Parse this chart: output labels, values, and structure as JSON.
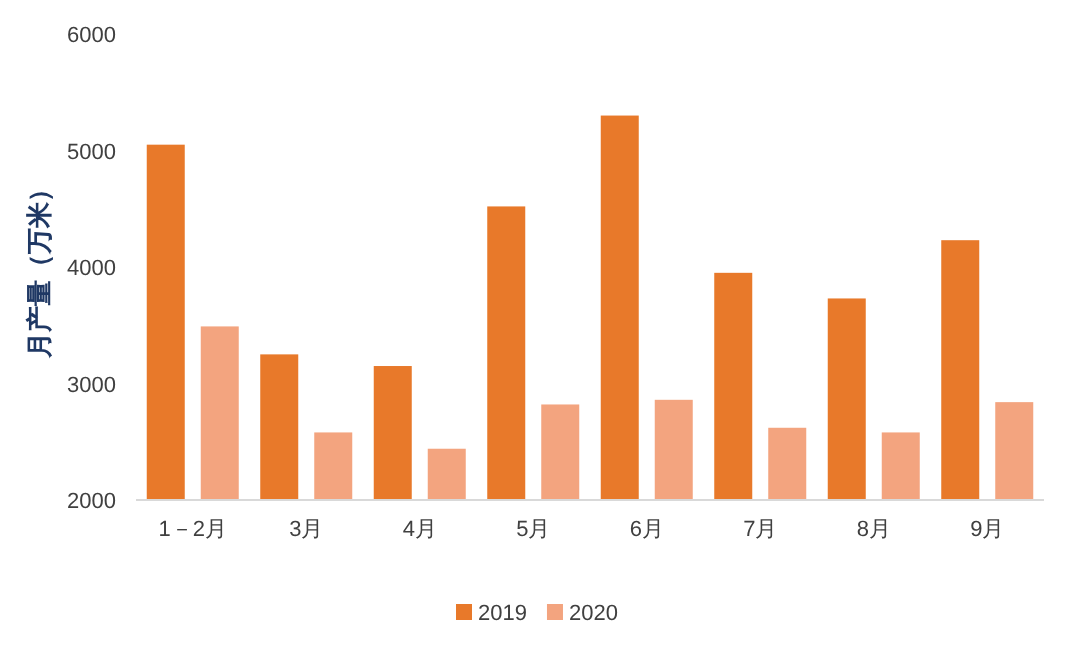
{
  "chart_data": {
    "type": "bar",
    "ylabel": "月产量（万米）",
    "categories": [
      "1－2月",
      "3月",
      "4月",
      "5月",
      "6月",
      "7月",
      "8月",
      "9月"
    ],
    "series": [
      {
        "name": "2019",
        "color": "#e8792a",
        "values": [
          5050,
          3250,
          3150,
          4520,
          5300,
          3950,
          3730,
          4230
        ]
      },
      {
        "name": "2020",
        "color": "#f3a47f",
        "values": [
          3490,
          2580,
          2440,
          2820,
          2860,
          2620,
          2580,
          2840
        ]
      }
    ],
    "ylim": [
      2000,
      6000
    ],
    "yticks": [
      2000,
      3000,
      4000,
      5000,
      6000
    ],
    "legend": "bottom"
  }
}
